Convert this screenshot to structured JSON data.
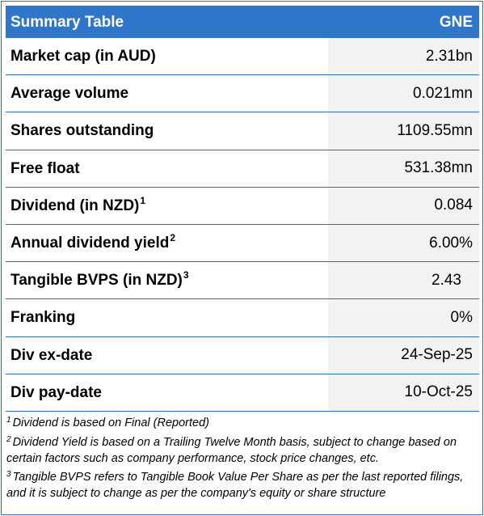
{
  "header": {
    "title": "Summary Table",
    "ticker": "GNE"
  },
  "rows": [
    {
      "label": "Market cap (in AUD)",
      "note": "",
      "value": "2.31bn"
    },
    {
      "label": "Average volume",
      "note": "",
      "value": "0.021mn"
    },
    {
      "label": "Shares outstanding",
      "note": "",
      "value": "1109.55mn"
    },
    {
      "label": "Free float",
      "note": "",
      "value": "531.38mn"
    },
    {
      "label": "Dividend (in NZD)",
      "note": "1",
      "value": "0.084"
    },
    {
      "label": "Annual dividend yield",
      "note": "2",
      "value": "6.00%"
    },
    {
      "label": "Tangible BVPS (in NZD)",
      "note": "3",
      "value": "2.43"
    },
    {
      "label": "Franking",
      "note": "",
      "value": "0%"
    },
    {
      "label": "Div ex-date",
      "note": "",
      "value": "24-Sep-25"
    },
    {
      "label": "Div pay-date",
      "note": "",
      "value": "10-Oct-25"
    }
  ],
  "footnotes": [
    {
      "mark": "1",
      "text": "Dividend is based on Final (Reported)"
    },
    {
      "mark": "2",
      "text": "Dividend Yield is based on a Trailing Twelve Month basis, subject to change based on certain factors such as company performance, stock price changes, etc."
    },
    {
      "mark": "3",
      "text": "Tangible BVPS refers to Tangible Book Value Per Share as per the last reported filings, and it is subject to change as per the company's equity or share structure"
    }
  ],
  "colors": {
    "header_bg": "#2f75c9",
    "header_text": "#ffffff",
    "value_bg": "#f2f2f2",
    "border": "#2f6cb4"
  }
}
